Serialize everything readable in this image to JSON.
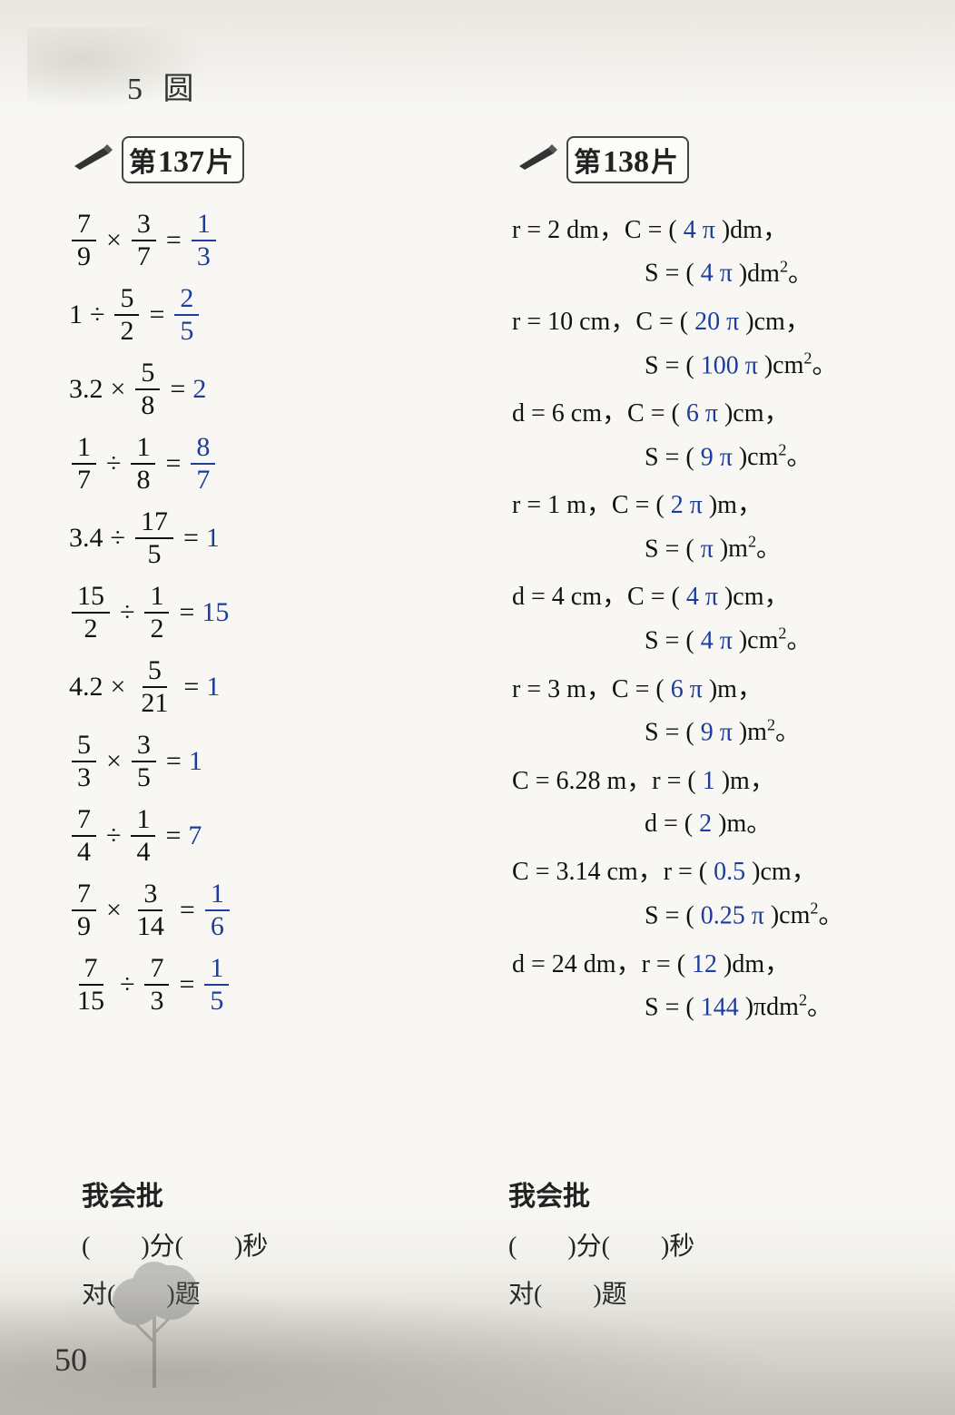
{
  "chapter": {
    "number": "5",
    "title": "圆"
  },
  "page_number": "50",
  "answer_color": "#1a3d9e",
  "card137": {
    "label_prefix": "第",
    "number": "137",
    "label_suffix": "片",
    "problems": [
      {
        "a_num": "7",
        "a_den": "9",
        "op": "×",
        "b_num": "3",
        "b_den": "7",
        "ans_type": "frac",
        "ans_num": "1",
        "ans_den": "3"
      },
      {
        "a_whole": "1",
        "op": "÷",
        "b_num": "5",
        "b_den": "2",
        "ans_type": "frac",
        "ans_num": "2",
        "ans_den": "5"
      },
      {
        "a_whole": "3.2",
        "op": "×",
        "b_num": "5",
        "b_den": "8",
        "ans_type": "whole",
        "ans": "2"
      },
      {
        "a_num": "1",
        "a_den": "7",
        "op": "÷",
        "b_num": "1",
        "b_den": "8",
        "ans_type": "frac",
        "ans_num": "8",
        "ans_den": "7"
      },
      {
        "a_whole": "3.4",
        "op": "÷",
        "b_num": "17",
        "b_den": "5",
        "ans_type": "whole",
        "ans": "1"
      },
      {
        "a_num": "15",
        "a_den": "2",
        "op": "÷",
        "b_num": "1",
        "b_den": "2",
        "ans_type": "whole",
        "ans": "15"
      },
      {
        "a_whole": "4.2",
        "op": "×",
        "b_num": "5",
        "b_den": "21",
        "ans_type": "whole",
        "ans": "1"
      },
      {
        "a_num": "5",
        "a_den": "3",
        "op": "×",
        "b_num": "3",
        "b_den": "5",
        "ans_type": "whole",
        "ans": "1"
      },
      {
        "a_num": "7",
        "a_den": "4",
        "op": "÷",
        "b_num": "1",
        "b_den": "4",
        "ans_type": "whole",
        "ans": "7"
      },
      {
        "a_num": "7",
        "a_den": "9",
        "op": "×",
        "b_num": "3",
        "b_den": "14",
        "ans_type": "frac",
        "ans_num": "1",
        "ans_den": "6"
      },
      {
        "a_num": "7",
        "a_den": "15",
        "op": "÷",
        "b_num": "7",
        "b_den": "3",
        "ans_type": "frac",
        "ans_num": "1",
        "ans_den": "5"
      }
    ]
  },
  "card138": {
    "label_prefix": "第",
    "number": "138",
    "label_suffix": "片",
    "lines": [
      {
        "main": "r = 2 dm，C = (",
        "ans1": "4 π",
        "mid1": ")dm，",
        "sub": "S = (",
        "ans2": "4 π",
        "tail": ")dm²。"
      },
      {
        "main": "r = 10 cm，C = (",
        "ans1": "20 π",
        "mid1": ")cm，",
        "sub": "S = (",
        "ans2": "100 π",
        "tail": ")cm²。"
      },
      {
        "main": "d = 6 cm，C = (",
        "ans1": "6 π",
        "mid1": ")cm，",
        "sub": "S = (",
        "ans2": "9 π",
        "tail": ")cm²。"
      },
      {
        "main": "r = 1 m，C = (",
        "ans1": "2 π",
        "mid1": ")m，",
        "sub": "S = (",
        "ans2": "π",
        "tail": ")m²。"
      },
      {
        "main": "d = 4 cm，C = (",
        "ans1": "4 π",
        "mid1": ")cm，",
        "sub": "S = (",
        "ans2": "4 π",
        "tail": ")cm²。"
      },
      {
        "main": "r = 3 m，C = (",
        "ans1": "6 π",
        "mid1": ")m，",
        "sub": "S = (",
        "ans2": "9 π",
        "tail": ")m²。"
      },
      {
        "main": "C = 6.28 m，r = (",
        "ans1": "1",
        "mid1": ")m，",
        "sub": "d = (",
        "ans2": "2",
        "tail": ")m。"
      },
      {
        "main": "C = 3.14 cm，r = (",
        "ans1": "0.5",
        "mid1": ")cm，",
        "sub": "S = (",
        "ans2": "0.25 π",
        "tail": ")cm²。"
      },
      {
        "main": "d = 24 dm，r = (",
        "ans1": "12",
        "mid1": ")dm，",
        "sub": "S = (",
        "ans2": "144",
        "tail": ")πdm²。"
      }
    ]
  },
  "footer": {
    "title": "我会批",
    "line1_a": "(　　)分(　　)秒",
    "line2_a": "对(　　)题"
  }
}
